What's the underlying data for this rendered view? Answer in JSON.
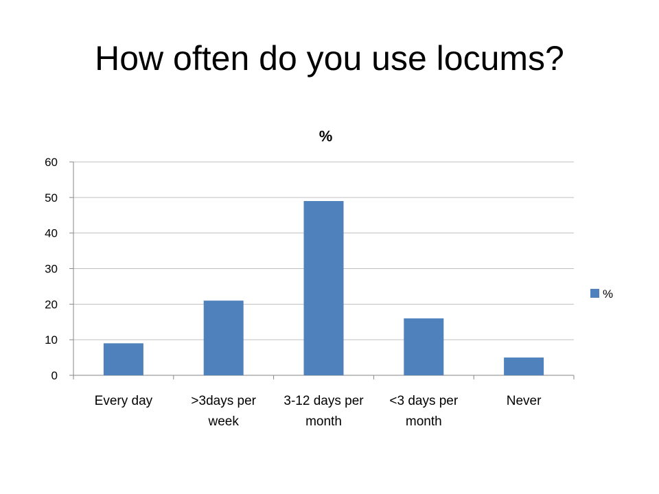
{
  "slide": {
    "title": "How often do you use locums?"
  },
  "chart_data": {
    "type": "bar",
    "title": "%",
    "categories": [
      [
        "Every day"
      ],
      [
        ">3days per",
        "week"
      ],
      [
        "3-12 days per",
        "month"
      ],
      [
        "<3 days per",
        "month"
      ],
      [
        "Never"
      ]
    ],
    "series": [
      {
        "name": "%",
        "values": [
          9,
          21,
          49,
          16,
          5
        ],
        "color": "#4F81BD"
      }
    ],
    "xlabel": "",
    "ylabel": "",
    "ylim": [
      0,
      60
    ],
    "yticks": [
      0,
      10,
      20,
      30,
      40,
      50,
      60
    ],
    "grid": true,
    "legend_position": "right"
  }
}
